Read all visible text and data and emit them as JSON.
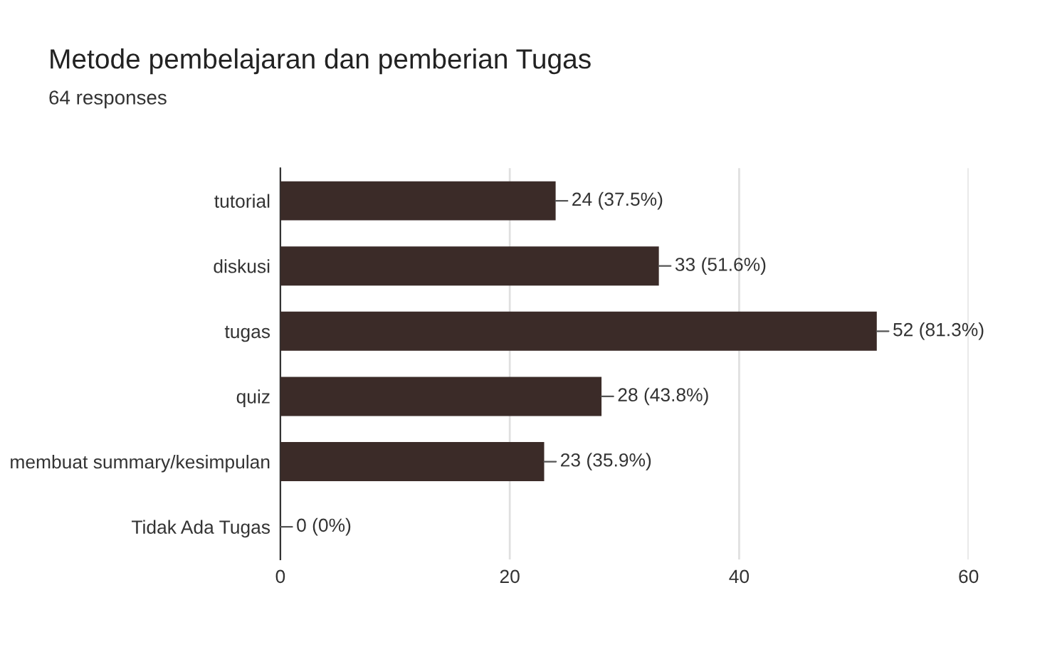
{
  "chart_data": {
    "type": "bar",
    "orientation": "horizontal",
    "title": "Metode pembelajaran dan pemberian Tugas",
    "subtitle": "64 responses",
    "categories": [
      "tutorial",
      "diskusi",
      "tugas",
      "quiz",
      "membuat summary/kesimpulan",
      "Tidak Ada Tugas"
    ],
    "values": [
      24,
      33,
      52,
      28,
      23,
      0
    ],
    "value_labels": [
      "24 (37.5%)",
      "33 (51.6%)",
      "52 (81.3%)",
      "28 (43.8%)",
      "23 (35.9%)",
      "0 (0%)"
    ],
    "color": "#3b2b28",
    "xlim": [
      0,
      60
    ],
    "xticks": [
      0,
      20,
      40,
      60
    ],
    "grid": "x",
    "legend": false
  }
}
